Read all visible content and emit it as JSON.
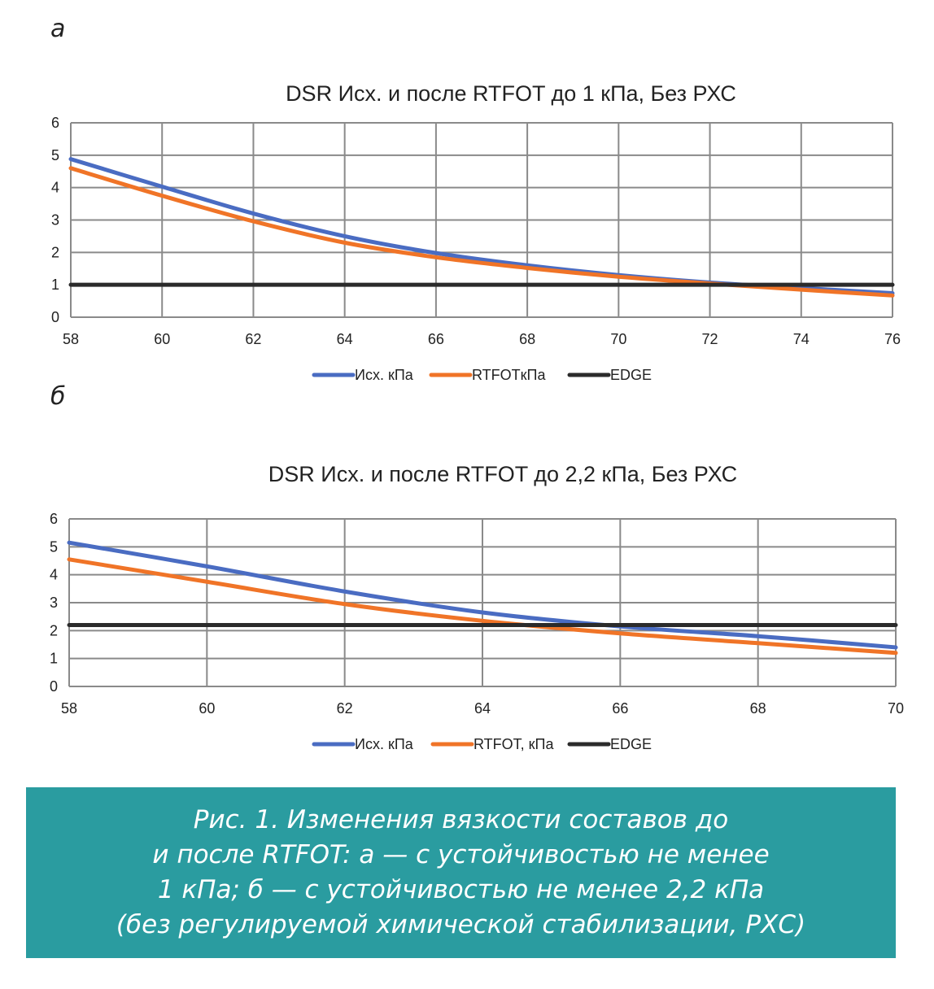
{
  "panels": {
    "a_label": "а",
    "b_label": "б"
  },
  "colors": {
    "series1": "#4a6cc2",
    "series2": "#f07427",
    "edge": "#2b2b2b",
    "grid": "#8a8a8a",
    "caption_bg": "#2a9ca0"
  },
  "chart_data": [
    {
      "type": "line",
      "title": "DSR Исх. и после RTFOT до 1 кПа, Без РХС",
      "xlabel": "",
      "ylabel": "",
      "xlim": [
        58,
        76
      ],
      "ylim": [
        0,
        6
      ],
      "xticks": [
        58,
        60,
        62,
        64,
        66,
        68,
        70,
        72,
        74,
        76
      ],
      "yticks": [
        0,
        1,
        2,
        3,
        4,
        5,
        6
      ],
      "grid": true,
      "legend_position": "bottom",
      "x": [
        58,
        60,
        62,
        64,
        66,
        68,
        70,
        72,
        74,
        76
      ],
      "series": [
        {
          "name": "Исх. кПа",
          "values": [
            4.88,
            4.03,
            3.2,
            2.5,
            1.98,
            1.6,
            1.3,
            1.07,
            0.9,
            0.74
          ],
          "color": "#4a6cc2"
        },
        {
          "name": "RTFOTкПа",
          "values": [
            4.6,
            3.75,
            2.96,
            2.3,
            1.85,
            1.52,
            1.25,
            1.04,
            0.85,
            0.67
          ],
          "color": "#f07427"
        },
        {
          "name": "EDGE",
          "values": [
            1,
            1,
            1,
            1,
            1,
            1,
            1,
            1,
            1,
            1
          ],
          "color": "#2b2b2b"
        }
      ]
    },
    {
      "type": "line",
      "title": "DSR Исх. и после RTFOT до 2,2 кПа, Без РХС",
      "xlabel": "",
      "ylabel": "",
      "xlim": [
        58,
        70
      ],
      "ylim": [
        0,
        6
      ],
      "xticks": [
        58,
        60,
        62,
        64,
        66,
        68,
        70
      ],
      "yticks": [
        0,
        1,
        2,
        3,
        4,
        5,
        6
      ],
      "grid": true,
      "legend_position": "bottom",
      "x": [
        58,
        60,
        62,
        64,
        66,
        68,
        70
      ],
      "series": [
        {
          "name": "Исх. кПа",
          "values": [
            5.15,
            4.3,
            3.4,
            2.65,
            2.15,
            1.8,
            1.4
          ],
          "color": "#4a6cc2"
        },
        {
          "name": "RTFOT, кПа",
          "values": [
            4.55,
            3.75,
            2.95,
            2.35,
            1.9,
            1.55,
            1.2
          ],
          "color": "#f07427"
        },
        {
          "name": "EDGE",
          "values": [
            2.2,
            2.2,
            2.2,
            2.2,
            2.2,
            2.2,
            2.2
          ],
          "color": "#2b2b2b"
        }
      ]
    }
  ],
  "caption": {
    "lines": [
      "Рис. 1. Изменения вязкости составов до",
      "и после RTFOT: а — с устойчивостью не менее",
      "1 кПа; б — с устойчивостью не менее 2,2 кПа",
      "(без регулируемой химической стабилизации, РХС)"
    ]
  }
}
